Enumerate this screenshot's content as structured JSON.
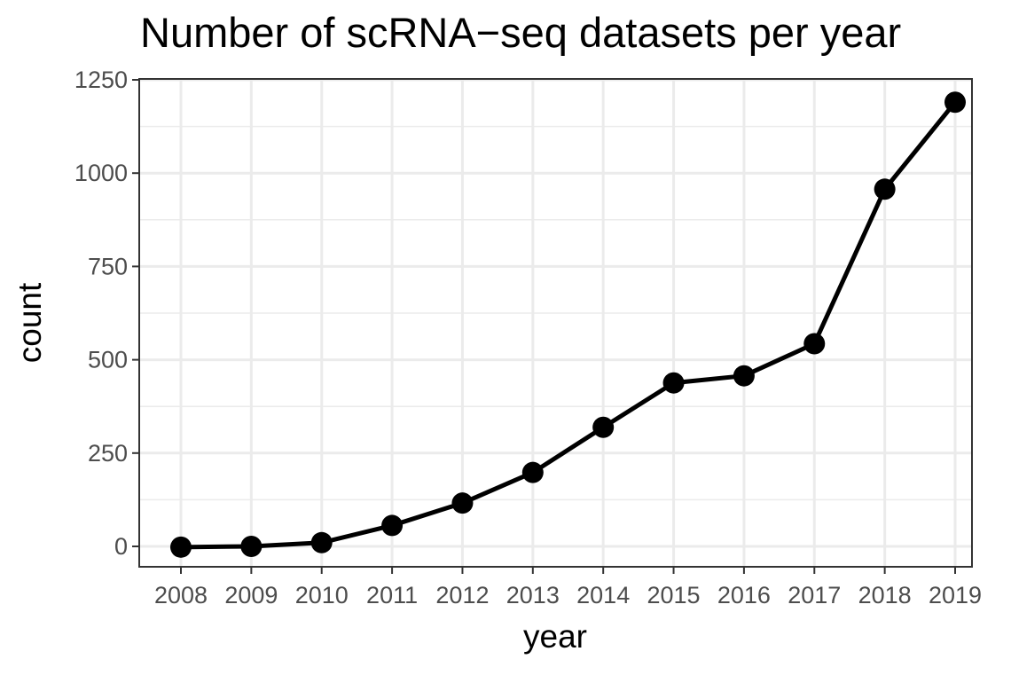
{
  "chart_data": {
    "type": "line",
    "title": "Number of scRNA−seq datasets per year",
    "xlabel": "year",
    "ylabel": "count",
    "categories": [
      "2008",
      "2009",
      "2010",
      "2011",
      "2012",
      "2013",
      "2014",
      "2015",
      "2016",
      "2017",
      "2018",
      "2019"
    ],
    "values": [
      -2,
      0,
      10,
      56,
      116,
      198,
      319,
      438,
      457,
      543,
      957,
      1190
    ],
    "ylim": [
      -55,
      1250
    ],
    "yticks": [
      0,
      250,
      500,
      750,
      1000,
      1250
    ],
    "grid": true,
    "legend": "none",
    "colors": {
      "line": "#000000",
      "point": "#000000",
      "grid": "#ebebeb",
      "border": "#333333",
      "tick_label": "#4d4d4d"
    }
  }
}
